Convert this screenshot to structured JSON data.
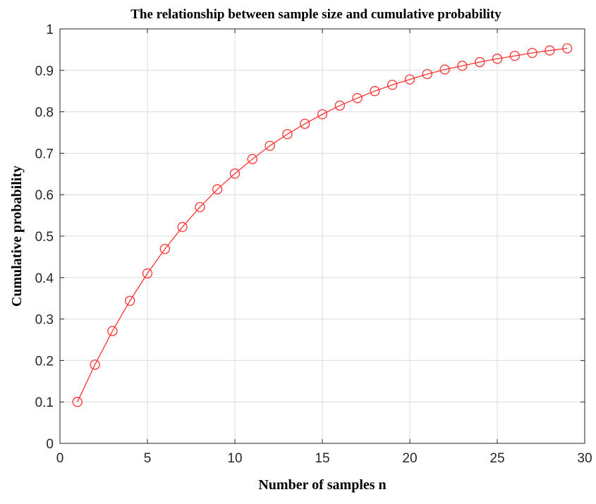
{
  "chart_data": {
    "type": "line",
    "title": "The relationship between sample size and cumulative probability",
    "xlabel": "Number of samples n",
    "ylabel": "Cumulative probability",
    "xlim": [
      0,
      30
    ],
    "ylim": [
      0,
      1
    ],
    "xticks": [
      0,
      5,
      10,
      15,
      20,
      25,
      30
    ],
    "yticks": [
      0,
      0.1,
      0.2,
      0.3,
      0.4,
      0.5,
      0.6,
      0.7,
      0.8,
      0.9,
      1
    ],
    "grid": true,
    "series": [
      {
        "color": "#ff3333",
        "marker": "circle",
        "x": [
          1,
          2,
          3,
          4,
          5,
          6,
          7,
          8,
          9,
          10,
          11,
          12,
          13,
          14,
          15,
          16,
          17,
          18,
          19,
          20,
          21,
          22,
          23,
          24,
          25,
          26,
          27,
          28,
          29
        ],
        "y": [
          0.1,
          0.19,
          0.271,
          0.344,
          0.41,
          0.469,
          0.522,
          0.57,
          0.613,
          0.651,
          0.686,
          0.718,
          0.746,
          0.771,
          0.794,
          0.815,
          0.833,
          0.85,
          0.865,
          0.878,
          0.891,
          0.902,
          0.911,
          0.92,
          0.928,
          0.935,
          0.942,
          0.948,
          0.953
        ]
      }
    ]
  }
}
